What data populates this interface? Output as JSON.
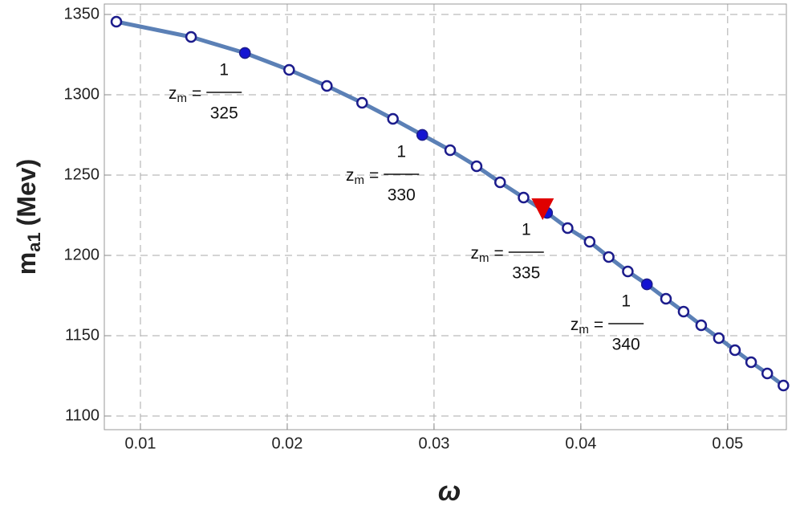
{
  "chart_data": {
    "type": "line",
    "x_label": "ω",
    "y_label": {
      "main": "m",
      "sub": "a1",
      "unit": "(Mev)"
    },
    "xlim": [
      0.00754,
      0.054
    ],
    "ylim": [
      1091.5,
      1356.5
    ],
    "xticks": [
      0.01,
      0.02,
      0.03,
      0.04,
      0.05
    ],
    "yticks": [
      1100,
      1150,
      1200,
      1250,
      1300,
      1350
    ],
    "grid": true,
    "series": [
      {
        "marker": "open",
        "color": "#5b80b6",
        "marker_color": "#1c1c8c",
        "x": [
          0.00836,
          0.01345,
          0.01712,
          0.02013,
          0.0227,
          0.0251,
          0.0272,
          0.0292,
          0.0311,
          0.0329,
          0.0345,
          0.0361,
          0.0377,
          0.0391,
          0.0406,
          0.0419,
          0.0432,
          0.0445,
          0.0458,
          0.047,
          0.0482,
          0.0494,
          0.0505,
          0.0516,
          0.0527,
          0.0538
        ],
        "values": [
          1345.5,
          1336,
          1326,
          1315.5,
          1305.5,
          1295,
          1285,
          1275,
          1265.5,
          1255.5,
          1245.5,
          1236,
          1226.5,
          1217,
          1208.5,
          1199,
          1190,
          1182,
          1173,
          1165,
          1156.5,
          1148.5,
          1141,
          1133.5,
          1126.5,
          1119
        ]
      },
      {
        "marker": "filled",
        "color": "#1414d2",
        "marker_color": "#1c1c8c",
        "x": [
          0.01712,
          0.0292,
          0.0377,
          0.0445
        ],
        "values": [
          1326,
          1275,
          1226.5,
          1182
        ]
      },
      {
        "marker": "triangle-down",
        "color": "#e00000",
        "x": [
          0.0374
        ],
        "values": [
          1230
        ]
      }
    ],
    "annotations": [
      {
        "lhs": "z",
        "sub": "m",
        "eq": "=",
        "num": "1",
        "den": "325"
      },
      {
        "lhs": "z",
        "sub": "m",
        "eq": "=",
        "num": "1",
        "den": "330"
      },
      {
        "lhs": "z",
        "sub": "m",
        "eq": "=",
        "num": "1",
        "den": "335"
      },
      {
        "lhs": "z",
        "sub": "m",
        "eq": "=",
        "num": "1",
        "den": "340"
      }
    ]
  }
}
